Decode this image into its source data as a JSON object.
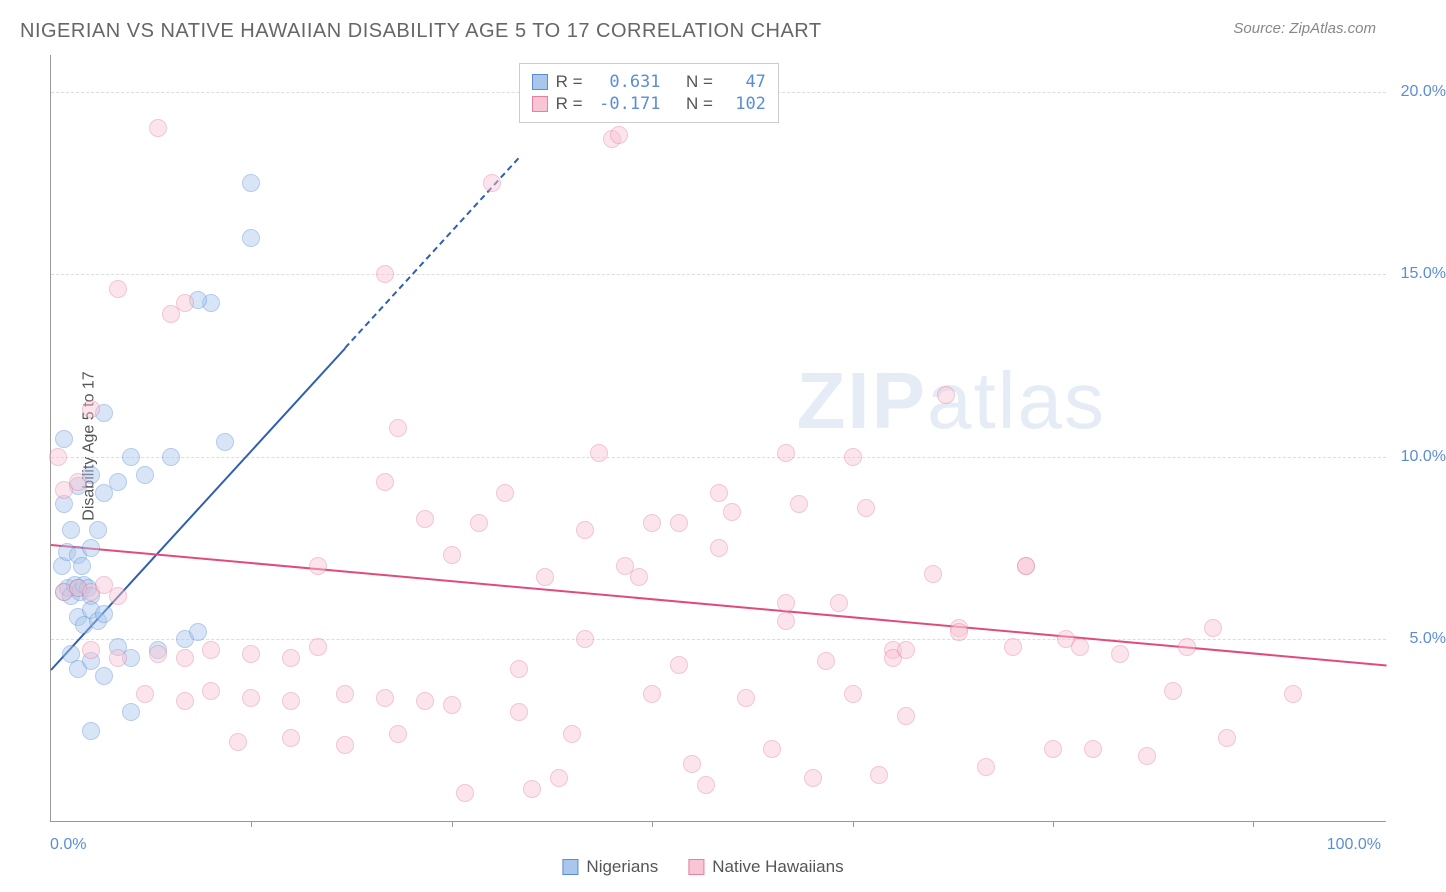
{
  "header": {
    "title": "NIGERIAN VS NATIVE HAWAIIAN DISABILITY AGE 5 TO 17 CORRELATION CHART",
    "source_prefix": "Source: ",
    "source": "ZipAtlas.com"
  },
  "chart": {
    "type": "scatter",
    "y_axis_title": "Disability Age 5 to 17",
    "xlim": [
      0,
      100
    ],
    "ylim": [
      0,
      21
    ],
    "x_label_min": "0.0%",
    "x_label_max": "100.0%",
    "x_ticks_pct": [
      15,
      30,
      45,
      60,
      75,
      90
    ],
    "y_ticks": [
      {
        "v": 5,
        "label": "5.0%"
      },
      {
        "v": 10,
        "label": "10.0%"
      },
      {
        "v": 15,
        "label": "15.0%"
      },
      {
        "v": 20,
        "label": "20.0%"
      }
    ],
    "background_color": "#ffffff",
    "grid_color": "#dddddd",
    "axis_color": "#999999",
    "tick_label_color": "#5b8dd6",
    "point_radius": 9,
    "point_opacity": 0.45,
    "series": [
      {
        "name": "Nigerians",
        "fill": "#a9c7ec",
        "stroke": "#5b8dd6",
        "trend": {
          "color": "#2f5fb3",
          "x0": 0,
          "y0": 4.2,
          "x1": 22,
          "y1": 13.0,
          "dash_extend_to_x": 35
        },
        "stats": {
          "R": "0.631",
          "N": "47"
        },
        "points": [
          [
            1,
            6.3
          ],
          [
            1.3,
            6.4
          ],
          [
            1.5,
            6.2
          ],
          [
            1.8,
            6.5
          ],
          [
            2,
            6.4
          ],
          [
            2.2,
            6.3
          ],
          [
            2.5,
            6.5
          ],
          [
            2.8,
            6.4
          ],
          [
            3,
            6.2
          ],
          [
            0.8,
            7.0
          ],
          [
            1.2,
            7.4
          ],
          [
            1.5,
            8.0
          ],
          [
            2,
            7.3
          ],
          [
            2.3,
            7.0
          ],
          [
            3,
            7.5
          ],
          [
            3.5,
            8.0
          ],
          [
            2,
            5.6
          ],
          [
            2.5,
            5.4
          ],
          [
            3,
            5.8
          ],
          [
            3.5,
            5.5
          ],
          [
            4,
            5.7
          ],
          [
            1.5,
            4.6
          ],
          [
            2,
            4.2
          ],
          [
            3,
            4.4
          ],
          [
            4,
            4.0
          ],
          [
            5,
            4.8
          ],
          [
            6,
            4.5
          ],
          [
            8,
            4.7
          ],
          [
            10,
            5.0
          ],
          [
            11,
            5.2
          ],
          [
            1,
            8.7
          ],
          [
            2,
            9.2
          ],
          [
            3,
            9.5
          ],
          [
            4,
            9.0
          ],
          [
            5,
            9.3
          ],
          [
            6,
            10.0
          ],
          [
            7,
            9.5
          ],
          [
            9,
            10.0
          ],
          [
            13,
            10.4
          ],
          [
            15,
            17.5
          ],
          [
            15,
            16.0
          ],
          [
            12,
            14.2
          ],
          [
            3,
            2.5
          ],
          [
            6,
            3.0
          ],
          [
            11,
            14.3
          ],
          [
            4,
            11.2
          ],
          [
            1,
            10.5
          ]
        ]
      },
      {
        "name": "Native Hawaiians",
        "fill": "#f7c5d3",
        "stroke": "#e67fa3",
        "trend": {
          "color": "#e14b7c",
          "x0": 0,
          "y0": 7.6,
          "x1": 100,
          "y1": 4.3
        },
        "stats": {
          "R": "-0.171",
          "N": "102"
        },
        "points": [
          [
            1,
            6.3
          ],
          [
            2,
            6.4
          ],
          [
            3,
            6.3
          ],
          [
            4,
            6.5
          ],
          [
            5,
            6.2
          ],
          [
            0.5,
            10.0
          ],
          [
            1,
            9.1
          ],
          [
            2,
            9.3
          ],
          [
            3,
            11.3
          ],
          [
            5,
            14.6
          ],
          [
            8,
            19.0
          ],
          [
            9,
            13.9
          ],
          [
            10,
            14.2
          ],
          [
            3,
            4.7
          ],
          [
            5,
            4.5
          ],
          [
            8,
            4.6
          ],
          [
            10,
            4.5
          ],
          [
            12,
            4.7
          ],
          [
            15,
            4.6
          ],
          [
            18,
            4.5
          ],
          [
            20,
            4.8
          ],
          [
            7,
            3.5
          ],
          [
            10,
            3.3
          ],
          [
            12,
            3.6
          ],
          [
            15,
            3.4
          ],
          [
            18,
            3.3
          ],
          [
            22,
            3.5
          ],
          [
            25,
            3.4
          ],
          [
            28,
            3.3
          ],
          [
            14,
            2.2
          ],
          [
            18,
            2.3
          ],
          [
            22,
            2.1
          ],
          [
            26,
            2.4
          ],
          [
            25,
            15.0
          ],
          [
            25,
            9.3
          ],
          [
            26,
            10.8
          ],
          [
            28,
            8.3
          ],
          [
            30,
            7.3
          ],
          [
            30,
            3.2
          ],
          [
            31,
            0.8
          ],
          [
            32,
            8.2
          ],
          [
            33,
            17.5
          ],
          [
            34,
            9.0
          ],
          [
            35,
            3.0
          ],
          [
            36,
            0.9
          ],
          [
            37,
            6.7
          ],
          [
            38,
            1.2
          ],
          [
            39,
            2.4
          ],
          [
            40,
            8.0
          ],
          [
            41,
            10.1
          ],
          [
            42,
            18.7
          ],
          [
            42.5,
            18.8
          ],
          [
            43,
            7.0
          ],
          [
            44,
            6.7
          ],
          [
            45,
            8.2
          ],
          [
            45,
            3.5
          ],
          [
            47,
            8.2
          ],
          [
            47,
            4.3
          ],
          [
            48,
            1.6
          ],
          [
            49,
            1.0
          ],
          [
            50,
            9.0
          ],
          [
            51,
            8.5
          ],
          [
            52,
            3.4
          ],
          [
            54,
            2.0
          ],
          [
            55,
            5.5
          ],
          [
            55,
            6.0
          ],
          [
            56,
            8.7
          ],
          [
            57,
            1.2
          ],
          [
            58,
            4.4
          ],
          [
            59,
            6.0
          ],
          [
            60,
            10.0
          ],
          [
            60,
            3.5
          ],
          [
            61,
            8.6
          ],
          [
            62,
            1.3
          ],
          [
            63,
            4.7
          ],
          [
            64,
            2.9
          ],
          [
            66,
            6.8
          ],
          [
            67,
            11.7
          ],
          [
            68,
            5.3
          ],
          [
            70,
            1.5
          ],
          [
            72,
            4.8
          ],
          [
            73,
            7.0
          ],
          [
            75,
            2.0
          ],
          [
            76,
            5.0
          ],
          [
            77,
            4.8
          ],
          [
            78,
            2.0
          ],
          [
            80,
            4.6
          ],
          [
            82,
            1.8
          ],
          [
            84,
            3.6
          ],
          [
            85,
            4.8
          ],
          [
            87,
            5.3
          ],
          [
            88,
            2.3
          ],
          [
            63,
            4.5
          ],
          [
            68,
            5.2
          ],
          [
            73,
            7.0
          ],
          [
            35,
            4.2
          ],
          [
            40,
            5.0
          ],
          [
            20,
            7.0
          ],
          [
            50,
            7.5
          ],
          [
            55,
            10.1
          ],
          [
            64,
            4.7
          ],
          [
            93,
            3.5
          ]
        ]
      }
    ]
  },
  "stats_box": {
    "R_label": "R =",
    "N_label": "N ="
  },
  "legend": {
    "series1": "Nigerians",
    "series2": "Native Hawaiians"
  },
  "watermark": {
    "text1": "ZIP",
    "text2": "atlas"
  }
}
